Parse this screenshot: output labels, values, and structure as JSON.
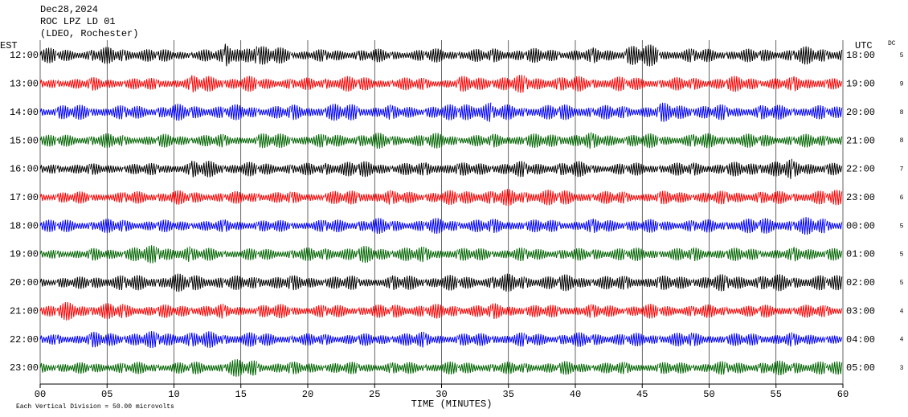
{
  "chart_data": {
    "type": "helicorder",
    "title_lines": [
      "Dec28,2024",
      "ROC LPZ LD 01",
      "(LDEO, Rochester)"
    ],
    "left_axis_label": "EST",
    "right_axis_label": "UTC",
    "dc_label": "DC",
    "x_label": "TIME (MINUTES)",
    "footnote": "Each Vertical Division =   50.00 microvolts",
    "xlim": [
      0,
      60
    ],
    "xticks": [
      {
        "value": 0,
        "label": "00"
      },
      {
        "value": 5,
        "label": "05"
      },
      10,
      15,
      20,
      25,
      30,
      35,
      40,
      45,
      50,
      55,
      60
    ],
    "x": [
      0,
      2.5,
      5,
      7.5,
      10,
      12.5,
      15,
      17.5,
      20,
      22.5,
      25,
      27.5,
      30,
      32.5,
      35,
      37.5,
      40,
      42.5,
      45,
      47.5,
      50,
      52.5,
      55,
      57.5,
      60
    ],
    "traces": [
      {
        "label": "12:00",
        "utc": "18:00",
        "dc": 5,
        "color": "#000000",
        "values": [
          14,
          12,
          15,
          14,
          11,
          12,
          24,
          17,
          11,
          12,
          12,
          11,
          13,
          12,
          14,
          13,
          12,
          14,
          20,
          13,
          13,
          12,
          13,
          16,
          15
        ]
      },
      {
        "label": "13:00",
        "utc": "19:00",
        "dc": 9,
        "color": "#ff0000",
        "values": [
          10,
          11,
          12,
          11,
          12,
          16,
          14,
          12,
          11,
          16,
          12,
          12,
          11,
          14,
          16,
          15,
          14,
          14,
          12,
          12,
          13,
          14,
          12,
          14,
          11
        ]
      },
      {
        "label": "14:00",
        "utc": "20:00",
        "dc": 8,
        "color": "#0000ff",
        "values": [
          12,
          14,
          13,
          13,
          15,
          14,
          14,
          13,
          14,
          16,
          14,
          12,
          14,
          21,
          14,
          14,
          15,
          13,
          13,
          17,
          14,
          13,
          14,
          13,
          12
        ]
      },
      {
        "label": "15:00",
        "utc": "21:00",
        "dc": 8,
        "color": "#006400",
        "values": [
          11,
          12,
          13,
          10,
          12,
          12,
          11,
          14,
          12,
          13,
          14,
          12,
          14,
          11,
          13,
          13,
          15,
          13,
          13,
          12,
          14,
          13,
          12,
          12,
          13
        ]
      },
      {
        "label": "16:00",
        "utc": "22:00",
        "dc": 7,
        "color": "#000000",
        "values": [
          10,
          11,
          10,
          11,
          12,
          16,
          13,
          12,
          11,
          16,
          14,
          12,
          14,
          12,
          14,
          13,
          14,
          11,
          12,
          12,
          13,
          13,
          18,
          14,
          13
        ]
      },
      {
        "label": "17:00",
        "utc": "23:00",
        "dc": 6,
        "color": "#ff0000",
        "values": [
          10,
          11,
          10,
          12,
          13,
          11,
          11,
          12,
          10,
          13,
          14,
          12,
          13,
          15,
          15,
          16,
          13,
          12,
          11,
          12,
          12,
          13,
          12,
          13,
          15
        ]
      },
      {
        "label": "18:00",
        "utc": "00:00",
        "dc": 5,
        "color": "#0000ff",
        "values": [
          12,
          12,
          13,
          12,
          11,
          11,
          12,
          11,
          11,
          13,
          14,
          12,
          14,
          13,
          13,
          12,
          12,
          13,
          12,
          12,
          12,
          14,
          15,
          16,
          13
        ]
      },
      {
        "label": "19:00",
        "utc": "01:00",
        "dc": 5,
        "color": "#006400",
        "values": [
          9,
          10,
          11,
          16,
          17,
          12,
          11,
          11,
          12,
          14,
          15,
          14,
          13,
          12,
          12,
          12,
          11,
          13,
          12,
          12,
          13,
          12,
          11,
          13,
          14
        ]
      },
      {
        "label": "20:00",
        "utc": "02:00",
        "dc": 5,
        "color": "#000000",
        "values": [
          10,
          11,
          15,
          14,
          17,
          15,
          13,
          14,
          13,
          13,
          12,
          14,
          14,
          13,
          16,
          14,
          15,
          13,
          14,
          13,
          15,
          15,
          15,
          15,
          14
        ]
      },
      {
        "label": "21:00",
        "utc": "03:00",
        "dc": 4,
        "color": "#ff0000",
        "values": [
          11,
          17,
          15,
          13,
          12,
          13,
          11,
          13,
          12,
          12,
          12,
          14,
          13,
          13,
          14,
          12,
          13,
          12,
          13,
          12,
          12,
          11,
          12,
          12,
          12
        ]
      },
      {
        "label": "22:00",
        "utc": "04:00",
        "dc": 4,
        "color": "#0000ff",
        "values": [
          10,
          12,
          14,
          15,
          16,
          15,
          14,
          12,
          11,
          12,
          11,
          14,
          12,
          12,
          13,
          12,
          13,
          13,
          12,
          14,
          12,
          12,
          13,
          11,
          10
        ]
      },
      {
        "label": "23:00",
        "utc": "05:00",
        "dc": 3,
        "color": "#006400",
        "values": [
          11,
          10,
          11,
          11,
          11,
          12,
          16,
          12,
          11,
          11,
          11,
          11,
          12,
          11,
          11,
          11,
          12,
          11,
          11,
          11,
          12,
          12,
          13,
          14,
          12
        ]
      }
    ]
  }
}
